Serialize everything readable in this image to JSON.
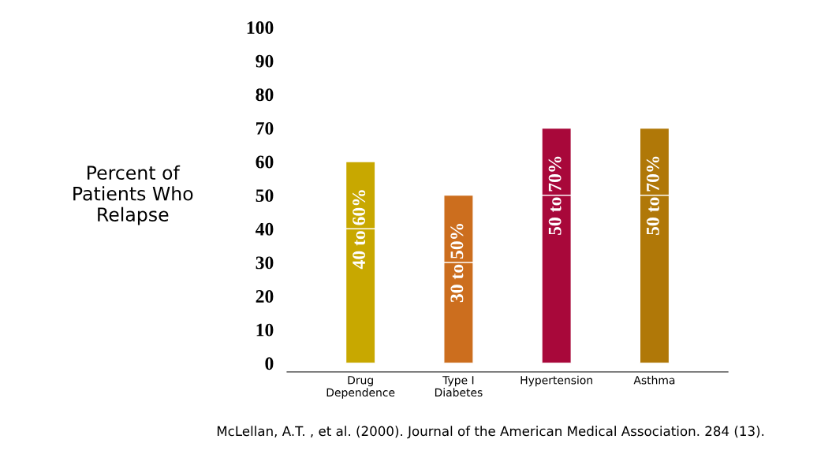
{
  "chart_data": {
    "type": "bar",
    "stacked": true,
    "ylabel": "Percent of\nPatients Who\nRelapse",
    "categories": [
      "Drug\nDependence",
      "Type I\nDiabetes",
      "Hypertension",
      "Asthma"
    ],
    "series": [
      {
        "colors": [
          "#c8a800",
          "#cc6e1e",
          "#a8083a",
          "#b07808"
        ],
        "values": [
          40,
          30,
          50,
          50
        ]
      },
      {
        "colors": [
          "#c8a800",
          "#cc6e1e",
          "#a8083a",
          "#b07808"
        ],
        "values": [
          20,
          20,
          20,
          20
        ]
      }
    ],
    "ylim": [
      0,
      100
    ],
    "yticks": [
      0,
      10,
      20,
      30,
      40,
      50,
      60,
      70,
      80,
      90,
      100
    ],
    "grid": false,
    "legend": false,
    "annotations": [
      {
        "text": "40 to 60%",
        "x": "Drug\nDependence",
        "y": 40
      },
      {
        "text": "30 to 50%",
        "x": "Type I\nDiabetes",
        "y": 30
      },
      {
        "text": "50 to 70%",
        "x": "Hypertension",
        "y": 50
      },
      {
        "text": "50 to 70%",
        "x": "Asthma",
        "y": 50
      },
      "McLellan, A.T. , et al. (2000). Journal of the American Medical Association. 284 (13)."
    ]
  }
}
